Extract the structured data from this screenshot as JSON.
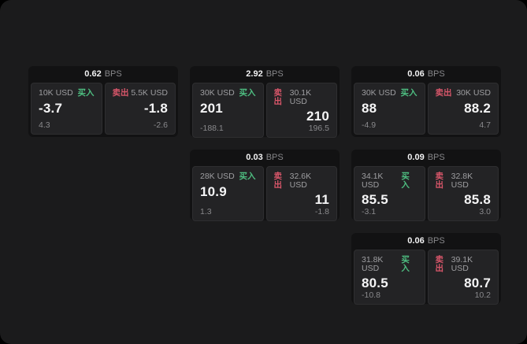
{
  "colors": {
    "surface_bg": "#1b1b1c",
    "card_bg": "#121213",
    "panel_bg": "#232325",
    "panel_border": "#2e2e30",
    "buy_accent": "#4ebe81",
    "sell_accent": "#d8566a",
    "price_text": "#f5f5f6",
    "muted_text": "#9e9ea1"
  },
  "labels": {
    "bps_unit": "BPS",
    "buy": "买入",
    "sell": "卖出"
  },
  "cards": [
    {
      "bps": "0.62",
      "buy": {
        "amount": "10K USD",
        "price": "-3.7",
        "change": "4.3"
      },
      "sell": {
        "amount": "5.5K USD",
        "price": "-1.8",
        "change": "-2.6"
      }
    },
    {
      "bps": "2.92",
      "buy": {
        "amount": "30K USD",
        "price": "201",
        "change": "-188.1"
      },
      "sell": {
        "amount": "30.1K USD",
        "price": "210",
        "change": "196.5"
      }
    },
    {
      "bps": "0.06",
      "buy": {
        "amount": "30K USD",
        "price": "88",
        "change": "-4.9"
      },
      "sell": {
        "amount": "30K USD",
        "price": "88.2",
        "change": "4.7"
      }
    },
    {
      "bps": "0.03",
      "buy": {
        "amount": "28K USD",
        "price": "10.9",
        "change": "1.3"
      },
      "sell": {
        "amount": "32.6K USD",
        "price": "11",
        "change": "-1.8"
      }
    },
    {
      "bps": "0.09",
      "buy": {
        "amount": "34.1K USD",
        "price": "85.5",
        "change": "-3.1"
      },
      "sell": {
        "amount": "32.8K USD",
        "price": "85.8",
        "change": "3.0"
      }
    },
    {
      "bps": "0.06",
      "buy": {
        "amount": "31.8K USD",
        "price": "80.5",
        "change": "-10.8"
      },
      "sell": {
        "amount": "39.1K USD",
        "price": "80.7",
        "change": "10.2"
      }
    }
  ]
}
